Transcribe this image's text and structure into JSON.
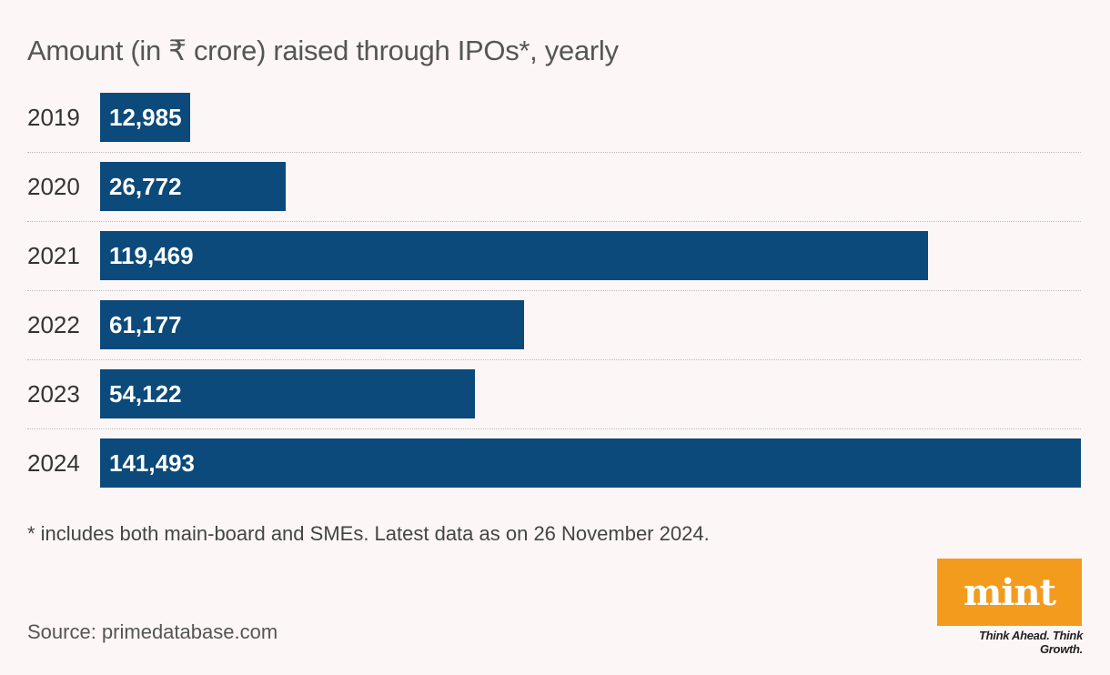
{
  "chart_data": {
    "type": "bar",
    "orientation": "horizontal",
    "title": "Amount (in ₹ crore) raised through IPOs*, yearly",
    "categories": [
      "2019",
      "2020",
      "2021",
      "2022",
      "2023",
      "2024"
    ],
    "values": [
      12985,
      26772,
      119469,
      61177,
      54122,
      141493
    ],
    "value_labels": [
      "12,985",
      "26,772",
      "119,469",
      "61,177",
      "54,122",
      "141,493"
    ],
    "xlim": [
      0,
      141493
    ],
    "xlabel": "",
    "ylabel": "",
    "grid": false,
    "bar_color": "#0b4a7a"
  },
  "footnote": "* includes both main-board and SMEs. Latest data as on 26 November 2024.",
  "source": "Source: primedatabase.com",
  "brand": {
    "logo_text": "mint",
    "tagline": "Think Ahead. Think Growth.",
    "logo_color": "#f29b1d"
  }
}
